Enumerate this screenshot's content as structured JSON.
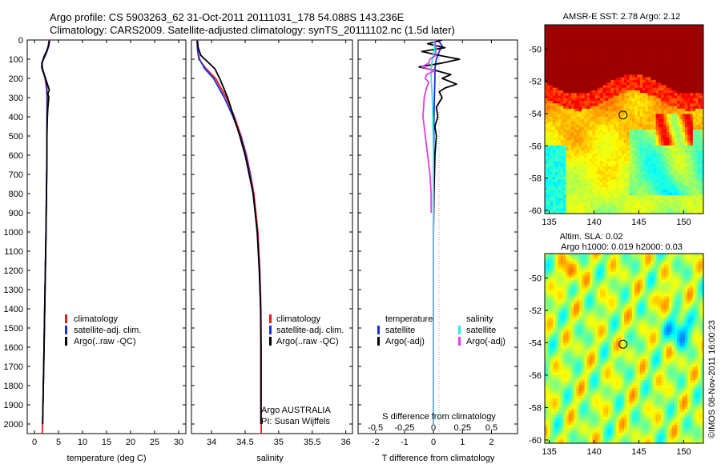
{
  "header": {
    "line1": "Argo profile: CS 5903263_62 31-Oct-2011 20111031_178 54.088S 143.236E",
    "line2": "Climatology: CARS2009. Satellite-adjusted climatology: synTS_20111102.nc (1.5d later)"
  },
  "colors": {
    "climatology": "#e41a1c",
    "satellite": "#1f2fd6",
    "argo": "#000000",
    "sal_satellite": "#2ee8e8",
    "sal_argo": "#e23ce8"
  },
  "depth_axis": {
    "ticks": [
      "0",
      "100",
      "200",
      "300",
      "400",
      "500",
      "600",
      "700",
      "800",
      "900",
      "1000",
      "1100",
      "1200",
      "1300",
      "1400",
      "1500",
      "1600",
      "1700",
      "1800",
      "1900",
      "2000"
    ]
  },
  "chart_data": [
    {
      "type": "line",
      "name": "temperature",
      "xlabel": "temperature (deg C)",
      "xlim": [
        -1.5,
        31.5
      ],
      "xticks": [
        "0",
        "5",
        "10",
        "15",
        "20",
        "25",
        "30"
      ],
      "ylim": [
        2050,
        0
      ],
      "legend": [
        "climatology",
        "satellite-adj. clim.",
        "Argo(..raw -QC)"
      ],
      "series": [
        {
          "name": "climatology",
          "color_key": "climatology",
          "depth": [
            0,
            30,
            60,
            90,
            120,
            150,
            200,
            250,
            300,
            400,
            600,
            800,
            1000,
            1300,
            1600,
            2000,
            2050
          ],
          "values": [
            3.0,
            2.9,
            2.5,
            2.0,
            1.6,
            1.7,
            2.2,
            2.5,
            2.6,
            2.6,
            2.6,
            2.5,
            2.4,
            2.2,
            2.0,
            1.7,
            1.6
          ]
        },
        {
          "name": "satellite-adj. clim.",
          "color_key": "satellite",
          "depth": [
            0,
            30,
            60,
            90,
            120,
            150,
            200,
            250,
            300,
            400,
            600,
            800,
            1000,
            1300,
            1600,
            2000
          ],
          "values": [
            3.1,
            3.0,
            2.6,
            2.1,
            1.5,
            1.7,
            2.3,
            2.6,
            2.7,
            2.6,
            2.6,
            2.5,
            2.4,
            2.2,
            2.0,
            1.7
          ]
        },
        {
          "name": "Argo(..raw -QC)",
          "color_key": "argo",
          "depth": [
            5,
            20,
            40,
            60,
            80,
            100,
            120,
            140,
            160,
            180,
            200,
            230,
            260,
            280,
            300,
            350,
            400,
            500,
            600,
            800,
            1000,
            1300,
            1600,
            2000
          ],
          "values": [
            3.2,
            3.0,
            2.8,
            2.5,
            2.1,
            1.8,
            1.6,
            1.5,
            1.7,
            2.0,
            2.3,
            2.7,
            3.1,
            2.8,
            3.0,
            2.8,
            2.7,
            2.6,
            2.6,
            2.5,
            2.4,
            2.2,
            2.0,
            1.7
          ]
        }
      ]
    },
    {
      "type": "line",
      "name": "salinity",
      "xlabel": "salinity",
      "xlim": [
        33.7,
        36.1
      ],
      "xticks": [
        "34",
        "34.5",
        "35",
        "35.5",
        "36"
      ],
      "ylim": [
        2050,
        0
      ],
      "legend": [
        "climatology",
        "satellite-adj. clim.",
        "Argo(..raw -QC)"
      ],
      "annotation": [
        "Argo AUSTRALIA",
        "PI: Susan Wijffels"
      ],
      "series": [
        {
          "name": "climatology",
          "color_key": "climatology",
          "depth": [
            0,
            50,
            100,
            150,
            200,
            300,
            400,
            500,
            600,
            700,
            800,
            1000,
            1200,
            1400,
            1600,
            1800,
            2000,
            2050
          ],
          "values": [
            33.78,
            33.79,
            33.81,
            33.92,
            34.06,
            34.22,
            34.34,
            34.44,
            34.52,
            34.58,
            34.63,
            34.69,
            34.72,
            34.735,
            34.74,
            34.74,
            34.74,
            34.74
          ]
        },
        {
          "name": "satellite-adj. clim.",
          "color_key": "satellite",
          "depth": [
            0,
            50,
            100,
            150,
            200,
            300,
            400,
            500,
            600,
            700,
            800,
            1000,
            1200,
            1400,
            1600,
            1800,
            2000
          ],
          "values": [
            33.79,
            33.79,
            33.82,
            33.9,
            34.03,
            34.19,
            34.32,
            34.43,
            34.51,
            34.57,
            34.62,
            34.68,
            34.715,
            34.73,
            34.735,
            34.735,
            34.735
          ]
        },
        {
          "name": "Argo(..raw -QC)",
          "color_key": "argo",
          "depth": [
            5,
            40,
            80,
            100,
            120,
            150,
            200,
            250,
            300,
            400,
            500,
            600,
            700,
            800,
            1000,
            1200,
            1400,
            1600,
            1800,
            2000
          ],
          "values": [
            33.79,
            33.8,
            33.84,
            33.9,
            33.96,
            34.05,
            34.12,
            34.18,
            34.24,
            34.33,
            34.42,
            34.5,
            34.56,
            34.62,
            34.68,
            34.71,
            34.73,
            34.735,
            34.735,
            34.735
          ]
        }
      ]
    },
    {
      "type": "line",
      "name": "difference",
      "xlabel": "T difference from climatology",
      "xlabel_top": "S difference from climatology",
      "xlim": [
        -2.6,
        2.9
      ],
      "xticks": [
        "-2",
        "-1",
        "0",
        "1",
        "2"
      ],
      "xticks_s": [
        "-0.5",
        "-0.25",
        "0",
        "0.25",
        "0.5"
      ],
      "ylim": [
        2050,
        0
      ],
      "legend_temperature": [
        "temperature",
        "satellite",
        "Argo(-adj)"
      ],
      "legend_salinity": [
        "salinity",
        "satellite",
        "Argo(-adj)"
      ],
      "series": [
        {
          "name": "temperature satellite",
          "color_key": "satellite",
          "depth": [
            0,
            30,
            60,
            100,
            150,
            200,
            300,
            400,
            600,
            800,
            1000,
            1300,
            1600,
            2000
          ],
          "values": [
            0.15,
            0.3,
            0.2,
            0.1,
            0.05,
            0.05,
            0.03,
            0.02,
            0.01,
            0.0,
            0.0,
            0.0,
            0.0,
            0.0
          ]
        },
        {
          "name": "temperature Argo(-adj)",
          "color_key": "argo",
          "depth": [
            0,
            20,
            40,
            60,
            80,
            100,
            120,
            140,
            160,
            180,
            200,
            230,
            250,
            270,
            300,
            350,
            400,
            450,
            500,
            600,
            800,
            1000,
            1300,
            1600,
            2000
          ],
          "values": [
            0.3,
            -0.2,
            0.4,
            -0.4,
            0.2,
            0.9,
            0.3,
            -0.5,
            0.1,
            0.6,
            0.3,
            0.8,
            0.4,
            0.2,
            0.3,
            0.1,
            0.15,
            0.05,
            0.1,
            0.05,
            0.02,
            0.0,
            0.0,
            0.0,
            0.0
          ]
        },
        {
          "name": "salinity satellite",
          "color_key": "sal_satellite",
          "depth": [
            0,
            50,
            100,
            150,
            200,
            300,
            400,
            600,
            800,
            1000,
            1300,
            1600,
            2000
          ],
          "values": [
            0.0,
            0.01,
            -0.01,
            -0.02,
            -0.02,
            -0.01,
            -0.005,
            0.0,
            0.0,
            0.0,
            0.0,
            0.0,
            0.0
          ]
        },
        {
          "name": "salinity Argo(-adj)",
          "color_key": "sal_argo",
          "depth": [
            5,
            40,
            80,
            100,
            120,
            140,
            160,
            180,
            200,
            220,
            250,
            300,
            400,
            500,
            600,
            700,
            800,
            900
          ],
          "values": [
            0.01,
            0.02,
            0.02,
            -0.03,
            -0.04,
            -0.1,
            0.01,
            -0.06,
            -0.07,
            -0.04,
            -0.06,
            -0.08,
            -0.09,
            -0.07,
            -0.05,
            -0.03,
            -0.02,
            -0.02
          ]
        }
      ]
    },
    {
      "type": "heatmap",
      "name": "sst_map",
      "title": "AMSR-E SST: 2.78 Argo: 2.12",
      "xlim": [
        134.5,
        152.2
      ],
      "ylim": [
        -60.2,
        -48.5
      ],
      "xticks": [
        "135",
        "140",
        "145",
        "150"
      ],
      "yticks": [
        "-50",
        "-52",
        "-54",
        "-56",
        "-58",
        "-60"
      ],
      "marker": {
        "lon": 143.236,
        "lat": -54.088
      }
    },
    {
      "type": "heatmap",
      "name": "sla_map",
      "title_line1": "Altim. SLA: 0.02",
      "title_line2": "Argo h1000: 0.019 h2000: 0.03",
      "xlim": [
        134.5,
        152.2
      ],
      "ylim": [
        -60.2,
        -48.5
      ],
      "xticks": [
        "135",
        "140",
        "145",
        "150"
      ],
      "yticks": [
        "-50",
        "-52",
        "-54",
        "-56",
        "-58",
        "-60"
      ],
      "marker": {
        "lon": 143.236,
        "lat": -54.088
      }
    }
  ],
  "footer": {
    "credit": "©IMOS 08-Nov-2011 16:00:23"
  }
}
